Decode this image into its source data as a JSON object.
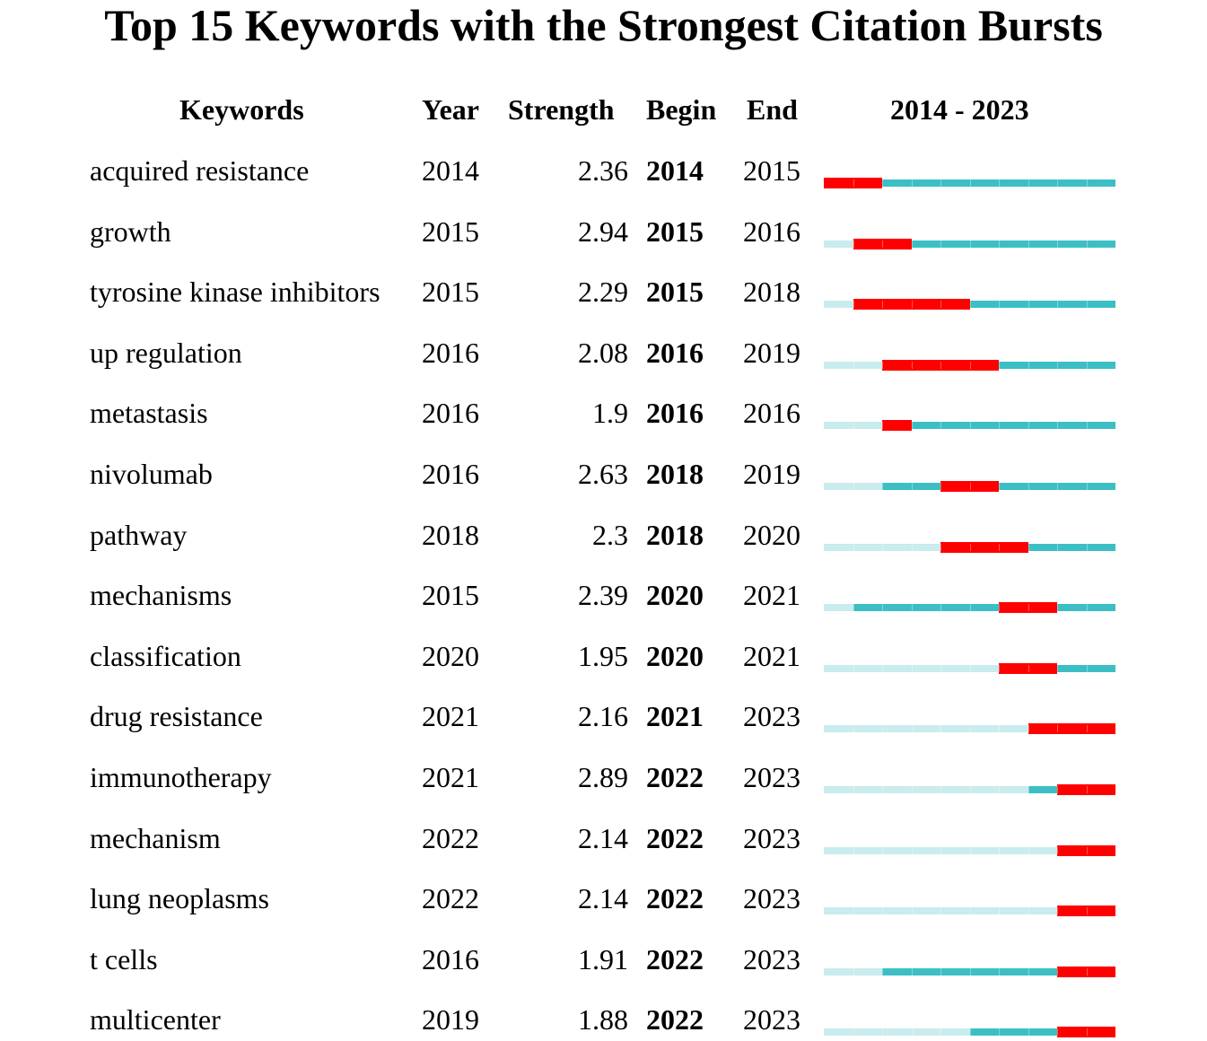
{
  "title": "Top 15 Keywords with the Strongest Citation Bursts",
  "headers": {
    "keywords": "Keywords",
    "year": "Year",
    "strength": "Strength",
    "begin": "Begin",
    "end": "End",
    "range": "2014 - 2023"
  },
  "colors": {
    "burst": "#ff0000",
    "active": "#3cbfc4",
    "inactive": "#c9ecee"
  },
  "chart_data": {
    "type": "table",
    "range_start": 2014,
    "range_end": 2023,
    "columns": [
      "Keywords",
      "Year",
      "Strength",
      "Begin",
      "End",
      "2014 - 2023"
    ],
    "rows": [
      {
        "keyword": "acquired resistance",
        "year": "2014",
        "strength": "2.36",
        "begin": "2014",
        "end": "2015"
      },
      {
        "keyword": "growth",
        "year": "2015",
        "strength": "2.94",
        "begin": "2015",
        "end": "2016"
      },
      {
        "keyword": "tyrosine kinase inhibitors",
        "year": "2015",
        "strength": "2.29",
        "begin": "2015",
        "end": "2018"
      },
      {
        "keyword": "up regulation",
        "year": "2016",
        "strength": "2.08",
        "begin": "2016",
        "end": "2019"
      },
      {
        "keyword": "metastasis",
        "year": "2016",
        "strength": "1.9",
        "begin": "2016",
        "end": "2016"
      },
      {
        "keyword": "nivolumab",
        "year": "2016",
        "strength": "2.63",
        "begin": "2018",
        "end": "2019"
      },
      {
        "keyword": "pathway",
        "year": "2018",
        "strength": "2.3",
        "begin": "2018",
        "end": "2020"
      },
      {
        "keyword": "mechanisms",
        "year": "2015",
        "strength": "2.39",
        "begin": "2020",
        "end": "2021"
      },
      {
        "keyword": "classification",
        "year": "2020",
        "strength": "1.95",
        "begin": "2020",
        "end": "2021"
      },
      {
        "keyword": "drug resistance",
        "year": "2021",
        "strength": "2.16",
        "begin": "2021",
        "end": "2023"
      },
      {
        "keyword": "immunotherapy",
        "year": "2021",
        "strength": "2.89",
        "begin": "2022",
        "end": "2023"
      },
      {
        "keyword": "mechanism",
        "year": "2022",
        "strength": "2.14",
        "begin": "2022",
        "end": "2023"
      },
      {
        "keyword": "lung neoplasms",
        "year": "2022",
        "strength": "2.14",
        "begin": "2022",
        "end": "2023"
      },
      {
        "keyword": "t cells",
        "year": "2016",
        "strength": "1.91",
        "begin": "2022",
        "end": "2023"
      },
      {
        "keyword": "multicenter",
        "year": "2019",
        "strength": "1.88",
        "begin": "2022",
        "end": "2023"
      }
    ]
  }
}
